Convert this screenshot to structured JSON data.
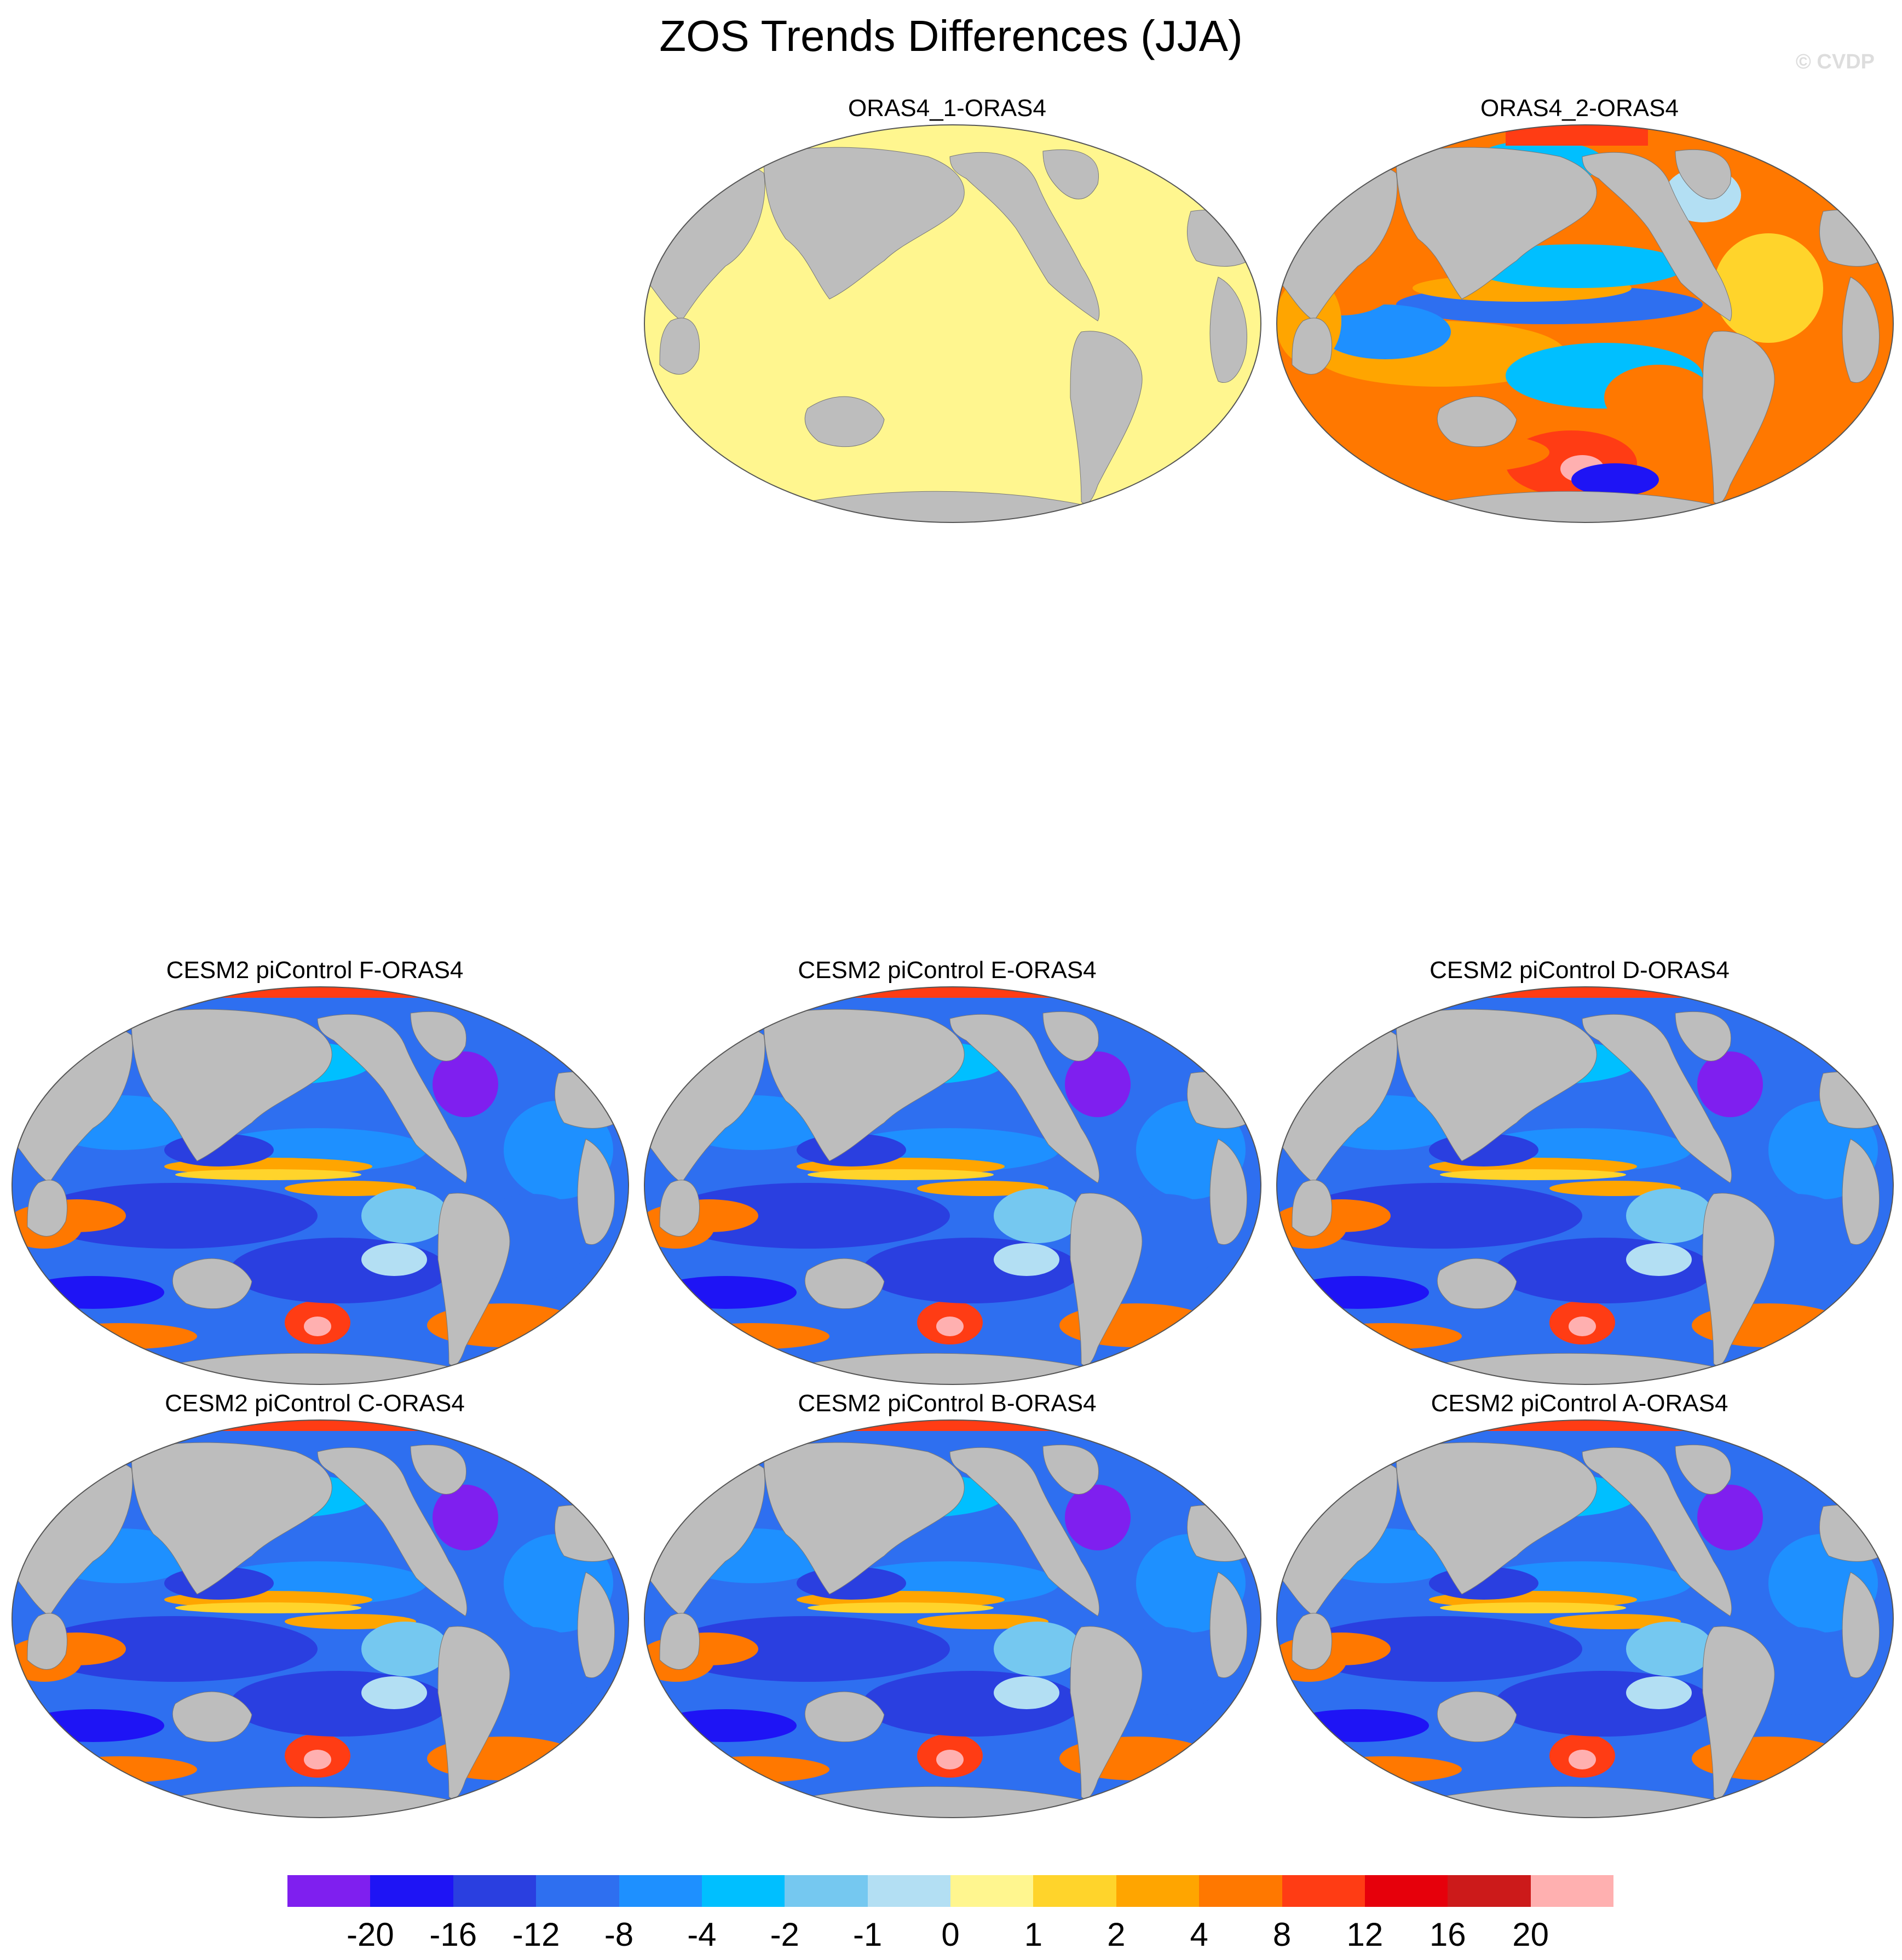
{
  "title": "ZOS Trends Differences (JJA)",
  "watermark": "© CVDP",
  "panels": [
    {
      "label": "ORAS4_1-ORAS4",
      "scheme": "zero"
    },
    {
      "label": "ORAS4_2-ORAS4",
      "scheme": "warm"
    },
    {
      "label": "CESM2 piControl F-ORAS4",
      "scheme": "cool"
    },
    {
      "label": "CESM2 piControl E-ORAS4",
      "scheme": "cool"
    },
    {
      "label": "CESM2 piControl D-ORAS4",
      "scheme": "cool"
    },
    {
      "label": "CESM2 piControl C-ORAS4",
      "scheme": "cool"
    },
    {
      "label": "CESM2 piControl B-ORAS4",
      "scheme": "cool"
    },
    {
      "label": "CESM2 piControl A-ORAS4",
      "scheme": "cool"
    }
  ],
  "colorbar": {
    "colors": [
      "#7f1fef",
      "#1e14f5",
      "#2a3fe0",
      "#2e6ff0",
      "#1e90ff",
      "#00bfff",
      "#75c8f0",
      "#b3dff3",
      "#fff68f",
      "#ffd42b",
      "#ffa500",
      "#ff7800",
      "#ff3c14",
      "#e6000b",
      "#cc1a1a",
      "#ffb0b0"
    ],
    "labels": [
      "-20",
      "-16",
      "-12",
      "-8",
      "-4",
      "-2",
      "-1",
      "0",
      "1",
      "2",
      "4",
      "8",
      "12",
      "16",
      "20"
    ]
  }
}
